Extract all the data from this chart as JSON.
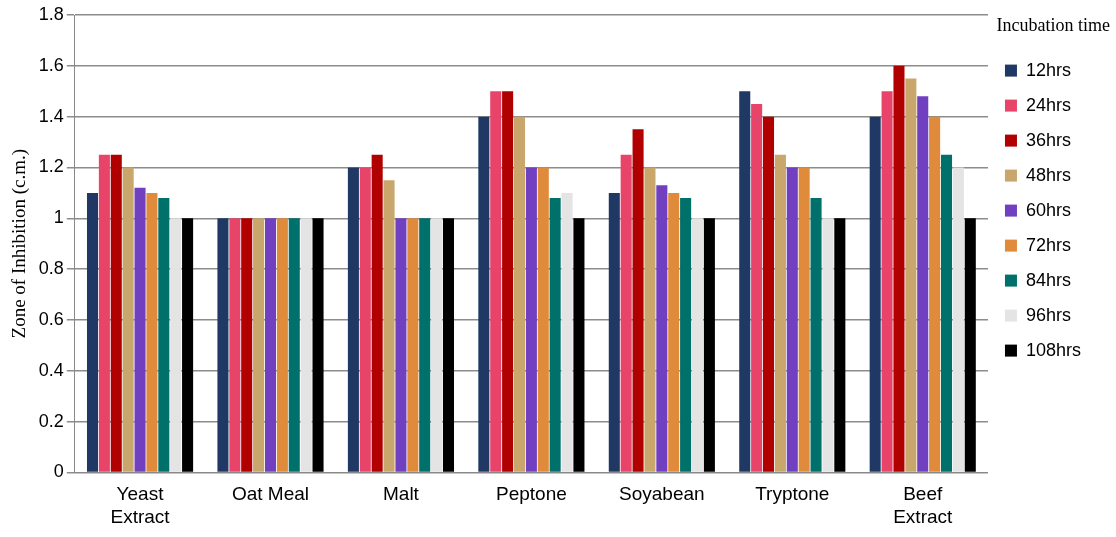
{
  "chart_data": {
    "type": "bar",
    "ylabel": "Zone of Inhibition (c.m.)",
    "legend_title": "Incubation time",
    "categories": [
      "Yeast Extract",
      "Oat Meal",
      "Malt",
      "Peptone",
      "Soyabean",
      "Tryptone",
      "Beef Extract"
    ],
    "series": [
      {
        "name": "12hrs",
        "color": "#1f3864",
        "values": [
          1.1,
          1.0,
          1.2,
          1.4,
          1.1,
          1.5,
          1.4
        ]
      },
      {
        "name": "24hrs",
        "color": "#e8446a",
        "values": [
          1.25,
          1.0,
          1.2,
          1.5,
          1.25,
          1.45,
          1.5
        ]
      },
      {
        "name": "36hrs",
        "color": "#b00000",
        "values": [
          1.25,
          1.0,
          1.25,
          1.5,
          1.35,
          1.4,
          1.6
        ]
      },
      {
        "name": "48hrs",
        "color": "#c9a66b",
        "values": [
          1.2,
          1.0,
          1.15,
          1.4,
          1.2,
          1.25,
          1.55
        ]
      },
      {
        "name": "60hrs",
        "color": "#7040c0",
        "values": [
          1.12,
          1.0,
          1.0,
          1.2,
          1.13,
          1.2,
          1.48
        ]
      },
      {
        "name": "72hrs",
        "color": "#e08a3c",
        "values": [
          1.1,
          1.0,
          1.0,
          1.2,
          1.1,
          1.2,
          1.4
        ]
      },
      {
        "name": "84hrs",
        "color": "#00706a",
        "values": [
          1.08,
          1.0,
          1.0,
          1.08,
          1.08,
          1.08,
          1.25
        ]
      },
      {
        "name": "96hrs",
        "color": "#e4e4e4",
        "values": [
          1.0,
          1.0,
          1.0,
          1.1,
          1.0,
          1.0,
          1.2
        ]
      },
      {
        "name": "108hrs",
        "color": "#000000",
        "values": [
          1.0,
          1.0,
          1.0,
          1.0,
          1.0,
          1.0,
          1.0
        ]
      }
    ],
    "ylim": [
      0,
      1.8
    ],
    "yticks": [
      0,
      0.2,
      0.4,
      0.6,
      0.8,
      1,
      1.2,
      1.4,
      1.6,
      1.8
    ],
    "grid": "y",
    "legend": "right"
  }
}
